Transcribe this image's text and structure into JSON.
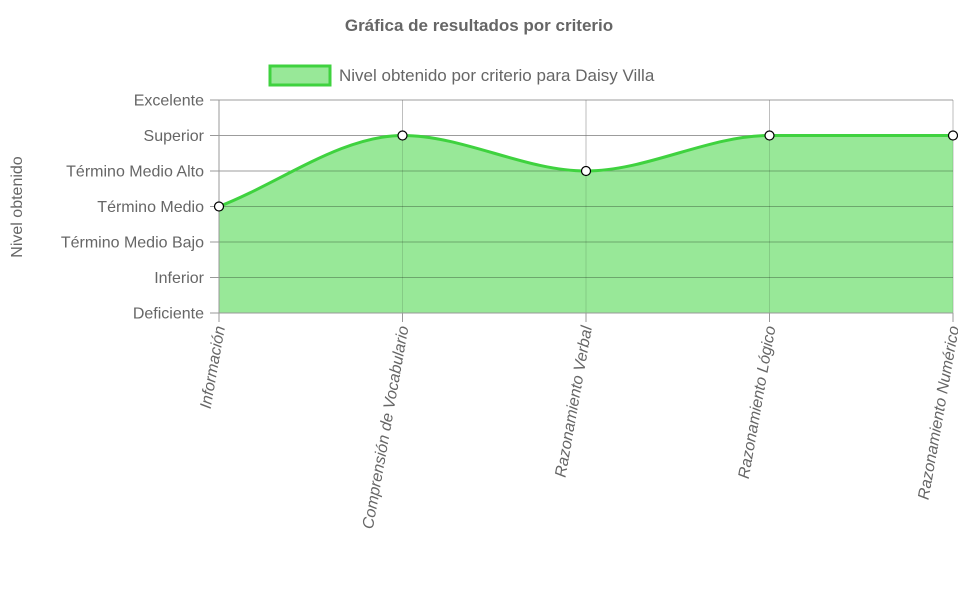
{
  "chart_data": {
    "type": "area",
    "title": "Gráfica de resultados por criterio",
    "ylabel": "Nivel obtenido",
    "xlabel": "",
    "categories": [
      "Información",
      "Comprensión de Vocabulario",
      "Razonamiento Verbal",
      "Razonamiento Lógico",
      "Razonamiento Numérico"
    ],
    "y_levels": [
      "Deficiente",
      "Inferior",
      "Término Medio Bajo",
      "Término Medio",
      "Término Medio Alto",
      "Superior",
      "Excelente"
    ],
    "ylim": [
      0,
      6
    ],
    "series": [
      {
        "name": "Nivel obtenido por criterio para Daisy Villa",
        "values": [
          3,
          5,
          4,
          5,
          5
        ]
      }
    ],
    "legend_position": "top",
    "grid": true,
    "colors": {
      "line": "#3fd23f",
      "fill": "#98e898",
      "legend_fill": "#98e898",
      "point_fill": "#ffffff",
      "point_stroke": "#000000",
      "grid": "#d9d9d9",
      "grid_on_fill": "#7fbf7f",
      "axis": "#999999",
      "text": "#666666"
    }
  }
}
